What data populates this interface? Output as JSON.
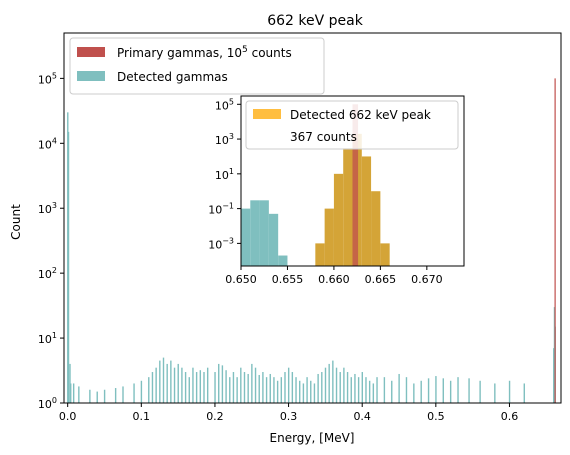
{
  "chart_data": [
    {
      "type": "bar",
      "title": "662 keV peak",
      "xlabel": "Energy, [MeV]",
      "ylabel": "Count",
      "xscale": "linear",
      "yscale": "log",
      "xlim": [
        -0.005,
        0.67
      ],
      "ylim": [
        1,
        500000
      ],
      "xticks": [
        "0.0",
        "0.1",
        "0.2",
        "0.3",
        "0.4",
        "0.5",
        "0.6"
      ],
      "xtick_values": [
        0,
        0.1,
        0.2,
        0.3,
        0.4,
        0.5,
        0.6
      ],
      "yticks": [
        "10^0",
        "10^1",
        "10^2",
        "10^3",
        "10^4",
        "10^5"
      ],
      "ytick_values": [
        1,
        10,
        100,
        1000,
        10000,
        100000
      ],
      "legend_position": "top-left",
      "grid": false,
      "series": [
        {
          "name": "Primary gammas, 10^5 counts",
          "color": "#c0504d",
          "x": [
            0.662
          ],
          "values": [
            100000
          ]
        },
        {
          "name": "Detected gammas",
          "color": "#7fbfbf",
          "x": [
            0.0,
            0.001,
            0.003,
            0.004,
            0.008,
            0.015,
            0.03,
            0.04,
            0.05,
            0.065,
            0.075,
            0.09,
            0.1,
            0.11,
            0.115,
            0.12,
            0.125,
            0.13,
            0.135,
            0.14,
            0.145,
            0.15,
            0.155,
            0.16,
            0.165,
            0.17,
            0.175,
            0.18,
            0.185,
            0.19,
            0.2,
            0.205,
            0.21,
            0.215,
            0.22,
            0.225,
            0.23,
            0.235,
            0.24,
            0.245,
            0.25,
            0.255,
            0.26,
            0.265,
            0.27,
            0.275,
            0.28,
            0.285,
            0.29,
            0.295,
            0.3,
            0.305,
            0.31,
            0.315,
            0.32,
            0.325,
            0.33,
            0.335,
            0.34,
            0.345,
            0.35,
            0.355,
            0.36,
            0.365,
            0.37,
            0.375,
            0.38,
            0.385,
            0.39,
            0.395,
            0.4,
            0.405,
            0.41,
            0.415,
            0.42,
            0.43,
            0.44,
            0.45,
            0.46,
            0.47,
            0.48,
            0.49,
            0.5,
            0.51,
            0.52,
            0.53,
            0.545,
            0.56,
            0.58,
            0.6,
            0.62,
            0.66,
            0.661,
            0.662
          ],
          "values": [
            30000,
            15000,
            4,
            2,
            2,
            1.8,
            1.6,
            1.5,
            1.6,
            1.7,
            1.8,
            2,
            2.2,
            2.5,
            3,
            3.5,
            4.5,
            5,
            4,
            4.5,
            3.5,
            4,
            3.5,
            3,
            2.5,
            3.5,
            3,
            3.2,
            3,
            3.5,
            3,
            4,
            3.8,
            3.2,
            2.5,
            3,
            2.5,
            3.5,
            3,
            2.8,
            4,
            3.5,
            2.7,
            3,
            2.5,
            2.8,
            2.5,
            2.2,
            2.5,
            3,
            3.5,
            3,
            2.5,
            2.2,
            2,
            2.5,
            2.2,
            2,
            2.8,
            3,
            3.5,
            4,
            4.5,
            3.5,
            3,
            3.5,
            3,
            2.5,
            2.8,
            2.5,
            3,
            2.5,
            2.2,
            2,
            2.5,
            2.5,
            2.2,
            2.8,
            2.5,
            2,
            2.2,
            2.4,
            2.6,
            2.4,
            2.2,
            2.5,
            2.4,
            2.2,
            2,
            2.2,
            2,
            7,
            30,
            15
          ]
        }
      ],
      "annotation": "10^5 counts"
    },
    {
      "type": "bar",
      "title": "",
      "xlabel": "",
      "ylabel": "",
      "xscale": "linear",
      "yscale": "log",
      "xlim": [
        0.65,
        0.674
      ],
      "ylim": [
        5e-05,
        300000
      ],
      "xticks": [
        "0.650",
        "0.655",
        "0.660",
        "0.665",
        "0.670"
      ],
      "xtick_values": [
        0.65,
        0.655,
        0.66,
        0.665,
        0.67
      ],
      "yticks": [
        "10^-3",
        "10^-1",
        "10^1",
        "10^3",
        "10^5"
      ],
      "ytick_values": [
        0.001,
        0.1,
        10,
        1000,
        100000
      ],
      "legend_position": "top-right",
      "legend_entries": [
        "Detected 662 keV peak",
        "367 counts"
      ],
      "series": [
        {
          "name": "",
          "color": "#7fbfbf",
          "bin_width": 0.001,
          "x": [
            0.6505,
            0.6515,
            0.6525,
            0.6535,
            0.6545
          ],
          "values": [
            0.1,
            0.3,
            0.3,
            0.05,
            0.0002
          ]
        },
        {
          "name": "Detected 662 keV peak",
          "color": "#d4a437",
          "bin_width": 0.001,
          "x": [
            0.6585,
            0.6595,
            0.6605,
            0.6615,
            0.6625,
            0.6635,
            0.6645,
            0.6655
          ],
          "values": [
            0.001,
            0.1,
            10,
            300,
            2000,
            100,
            1,
            0.001
          ]
        },
        {
          "name": "",
          "color": "#c0504d",
          "bin_width": 0.0006,
          "x": [
            0.6623
          ],
          "values": [
            100000
          ]
        }
      ]
    }
  ]
}
